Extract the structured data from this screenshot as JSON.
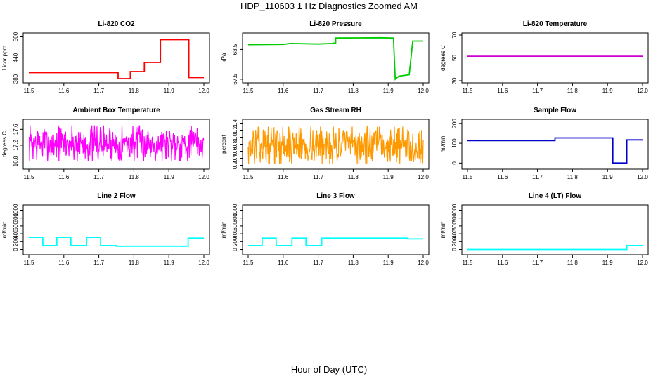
{
  "figure": {
    "title": "HDP_110603  1 Hz Diagnostics Zoomed AM",
    "xlabel": "Hour of Day (UTC)"
  },
  "chart_data": [
    {
      "type": "line",
      "title": "Li-820 CO2",
      "xlabel": "",
      "ylabel": "Licor ppm",
      "color": "#ff0000",
      "xlim": [
        11.5,
        12.0
      ],
      "ylim": [
        375,
        505
      ],
      "xticks": [
        11.5,
        11.6,
        11.7,
        11.8,
        11.9,
        12.0
      ],
      "yticks": [
        380,
        440,
        500
      ],
      "series": [
        {
          "x": [
            11.5,
            11.755,
            11.755,
            11.79,
            11.79,
            11.83,
            11.83,
            11.876,
            11.876,
            11.957,
            11.957,
            12.0
          ],
          "y": [
            398,
            398,
            381,
            381,
            401,
            401,
            427,
            427,
            492,
            492,
            384,
            384
          ]
        }
      ]
    },
    {
      "type": "line",
      "title": "Li-820 Pressure",
      "xlabel": "",
      "ylabel": "kPa",
      "color": "#00cc00",
      "xlim": [
        11.5,
        12.0
      ],
      "ylim": [
        67.45,
        68.98
      ],
      "xticks": [
        11.5,
        11.6,
        11.7,
        11.8,
        11.9,
        12.0
      ],
      "yticks": [
        67.5,
        68.5
      ],
      "series": [
        {
          "x": [
            11.5,
            11.6,
            11.62,
            11.7,
            11.74,
            11.75,
            11.75,
            11.88,
            11.915,
            11.92,
            11.93,
            11.96,
            11.97,
            12.0
          ],
          "y": [
            68.66,
            68.67,
            68.7,
            68.68,
            68.7,
            68.72,
            68.88,
            68.89,
            68.88,
            67.5,
            67.6,
            67.65,
            68.78,
            68.78
          ]
        }
      ]
    },
    {
      "type": "line",
      "title": "Li-820 Temperature",
      "xlabel": "",
      "ylabel": "degrees C",
      "color": "#cc00cc",
      "xlim": [
        11.5,
        12.0
      ],
      "ylim": [
        30,
        70
      ],
      "xticks": [
        11.5,
        11.6,
        11.7,
        11.8,
        11.9,
        12.0
      ],
      "yticks": [
        30,
        50,
        70
      ],
      "series": [
        {
          "x": [
            11.5,
            12.0
          ],
          "y": [
            51.5,
            51.5
          ]
        }
      ]
    },
    {
      "type": "line",
      "title": "Ambient Box Temperature",
      "xlabel": "",
      "ylabel": "degrees C",
      "color": "#ff00ff",
      "xlim": [
        11.5,
        12.0
      ],
      "ylim": [
        16.65,
        17.8
      ],
      "xticks": [
        11.5,
        11.6,
        11.7,
        11.8,
        11.9,
        12.0
      ],
      "yticks": [
        16.8,
        17.2,
        17.6
      ],
      "noise": {
        "mean": 17.15,
        "lo": 16.8,
        "hi": 17.7,
        "n": 420,
        "seed": 7
      }
    },
    {
      "type": "line",
      "title": "Gas Stream RH",
      "xlabel": "",
      "ylabel": "percent",
      "color": "#ff9900",
      "xlim": [
        11.5,
        12.0
      ],
      "ylim": [
        0.15,
        1.45
      ],
      "xticks": [
        11.5,
        11.6,
        11.7,
        11.8,
        11.9,
        12.0
      ],
      "yticks": [
        0.2,
        0.4,
        0.6,
        0.8,
        1.0,
        1.2,
        1.4
      ],
      "noise": {
        "mean": 0.6,
        "lo": 0.25,
        "hi": 1.3,
        "n": 420,
        "seed": 13
      }
    },
    {
      "type": "line",
      "title": "Sample Flow",
      "xlabel": "",
      "ylabel": "ml/min",
      "color": "#0000cc",
      "xlim": [
        11.5,
        12.0
      ],
      "ylim": [
        -20,
        210
      ],
      "xticks": [
        11.5,
        11.6,
        11.7,
        11.8,
        11.9,
        12.0
      ],
      "yticks": [
        0,
        100,
        200
      ],
      "series": [
        {
          "x": [
            11.5,
            11.75,
            11.75,
            11.915,
            11.915,
            11.955,
            11.955,
            12.0
          ],
          "y": [
            113,
            113,
            127,
            127,
            0,
            0,
            117,
            117
          ]
        }
      ]
    },
    {
      "type": "line",
      "title": "Line 2 Flow",
      "xlabel": "",
      "ylabel": "ml/min",
      "color": "#00ffff",
      "xlim": [
        11.5,
        12.0
      ],
      "ylim": [
        -80,
        1080
      ],
      "xticks": [
        11.5,
        11.6,
        11.7,
        11.8,
        11.9,
        12.0
      ],
      "yticks": [
        0,
        200,
        400,
        600,
        800,
        1000
      ],
      "series": [
        {
          "x": [
            11.5,
            11.54,
            11.54,
            11.58,
            11.58,
            11.62,
            11.62,
            11.665,
            11.665,
            11.705,
            11.705,
            11.75,
            11.75,
            11.955,
            11.955,
            12.0
          ],
          "y": [
            310,
            310,
            100,
            100,
            310,
            310,
            100,
            100,
            310,
            310,
            100,
            100,
            85,
            85,
            290,
            290
          ]
        }
      ]
    },
    {
      "type": "line",
      "title": "Line 3 Flow",
      "xlabel": "",
      "ylabel": "ml/min",
      "color": "#00ffff",
      "xlim": [
        11.5,
        12.0
      ],
      "ylim": [
        -80,
        1080
      ],
      "xticks": [
        11.5,
        11.6,
        11.7,
        11.8,
        11.9,
        12.0
      ],
      "yticks": [
        0,
        200,
        400,
        600,
        800,
        1000
      ],
      "series": [
        {
          "x": [
            11.5,
            11.54,
            11.54,
            11.58,
            11.58,
            11.625,
            11.625,
            11.665,
            11.665,
            11.71,
            11.71,
            11.955,
            11.955,
            12.0
          ],
          "y": [
            100,
            100,
            290,
            290,
            100,
            100,
            290,
            290,
            100,
            100,
            290,
            290,
            270,
            270
          ]
        }
      ]
    },
    {
      "type": "line",
      "title": "Line 4 (LT) Flow",
      "xlabel": "",
      "ylabel": "ml/min",
      "color": "#00ffff",
      "xlim": [
        11.5,
        12.0
      ],
      "ylim": [
        -80,
        1080
      ],
      "xticks": [
        11.5,
        11.6,
        11.7,
        11.8,
        11.9,
        12.0
      ],
      "yticks": [
        0,
        200,
        400,
        600,
        800,
        1000
      ],
      "series": [
        {
          "x": [
            11.5,
            11.955,
            11.955,
            12.0
          ],
          "y": [
            0,
            0,
            100,
            100
          ]
        }
      ]
    }
  ]
}
